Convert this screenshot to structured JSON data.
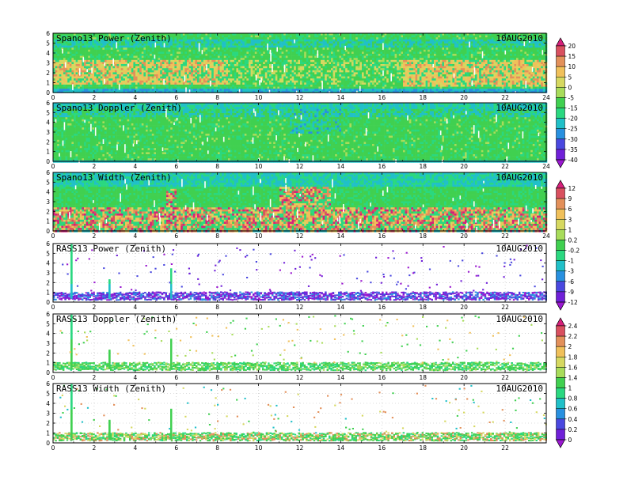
{
  "chart_data": [
    {
      "type": "heatmap",
      "title": "Spano13 Power (Zenith)",
      "date": "10AUG2010",
      "x_ticks": [
        0,
        2,
        4,
        6,
        8,
        10,
        12,
        14,
        16,
        18,
        20,
        22,
        24
      ],
      "y_ticks": [
        0,
        1,
        2,
        3,
        4,
        5,
        6
      ],
      "xlim": [
        0,
        24
      ],
      "ylim": [
        0,
        6
      ],
      "pattern": "power",
      "colorbar": "A"
    },
    {
      "type": "heatmap",
      "title": "Spano13 Doppler (Zenith)",
      "date": "10AUG2010",
      "x_ticks": [
        0,
        2,
        4,
        6,
        8,
        10,
        12,
        14,
        16,
        18,
        20,
        22,
        24
      ],
      "y_ticks": [
        0,
        1,
        2,
        3,
        4,
        5,
        6
      ],
      "xlim": [
        0,
        24
      ],
      "ylim": [
        0,
        6
      ],
      "pattern": "doppler",
      "colorbar": "A"
    },
    {
      "type": "heatmap",
      "title": "Spano13 Width (Zenith)",
      "date": "10AUG2010",
      "x_ticks": [
        0,
        2,
        4,
        6,
        8,
        10,
        12,
        14,
        16,
        18,
        20,
        22,
        24
      ],
      "y_ticks": [
        0,
        1,
        2,
        3,
        4,
        5,
        6
      ],
      "xlim": [
        0,
        24
      ],
      "ylim": [
        0,
        6
      ],
      "pattern": "width",
      "colorbar": "B"
    },
    {
      "type": "scatter",
      "title": "RASS13 Power (Zenith)",
      "date": "10AUG2010",
      "x_ticks": [
        0,
        2,
        4,
        6,
        8,
        10,
        12,
        14,
        16,
        18,
        20,
        22
      ],
      "y_ticks": [
        0,
        1,
        2,
        3,
        4,
        5,
        6
      ],
      "xlim": [
        0,
        24
      ],
      "ylim": [
        0,
        6
      ],
      "pattern": "rass_power",
      "colorbar": "B"
    },
    {
      "type": "scatter",
      "title": "RASS13 Doppler (Zenith)",
      "date": "10AUG2010",
      "x_ticks": [
        0,
        2,
        4,
        6,
        8,
        10,
        12,
        14,
        16,
        18,
        20,
        22
      ],
      "y_ticks": [
        0,
        1,
        2,
        3,
        4,
        5,
        6
      ],
      "xlim": [
        0,
        24
      ],
      "ylim": [
        0,
        6
      ],
      "pattern": "rass_doppler",
      "colorbar": "C"
    },
    {
      "type": "scatter",
      "title": "RASS13 Width (Zenith)",
      "date": "10AUG2010",
      "x_ticks": [
        0,
        2,
        4,
        6,
        8,
        10,
        12,
        14,
        16,
        18,
        20,
        22
      ],
      "y_ticks": [
        0,
        1,
        2,
        3,
        4,
        5,
        6
      ],
      "xlim": [
        0,
        24
      ],
      "ylim": [
        0,
        6
      ],
      "pattern": "rass_width",
      "colorbar": "C"
    }
  ],
  "colorbars": {
    "A": {
      "labels": [
        "20",
        "15",
        "10",
        "5",
        "0",
        "-5",
        "-15",
        "-20",
        "-25",
        "-30",
        "-35",
        "-40"
      ],
      "colors": [
        "#d6207a",
        "#d9505f",
        "#e3905a",
        "#f0c05a",
        "#d6d860",
        "#a8dc5a",
        "#40d050",
        "#2ad880",
        "#20c0c8",
        "#2890e0",
        "#4a48e0",
        "#7020d8",
        "#9a18d0"
      ]
    },
    "B": {
      "labels": [
        "12",
        "9",
        "6",
        "3",
        "1",
        "0.2",
        "-0.2",
        "-1",
        "-3",
        "-6",
        "-9",
        "-12"
      ],
      "colors": [
        "#d6207a",
        "#d9505f",
        "#e3905a",
        "#f0c05a",
        "#d6d860",
        "#a8dc5a",
        "#40d050",
        "#2ad880",
        "#20c0c8",
        "#2890e0",
        "#4a48e0",
        "#7020d8",
        "#9a18d0"
      ]
    },
    "C": {
      "labels": [
        "2.4",
        "2.2",
        "2",
        "1.8",
        "1.6",
        "1.4",
        "1",
        "0.8",
        "0.6",
        "0.4",
        "0.2",
        "0"
      ],
      "colors": [
        "#d6207a",
        "#d9505f",
        "#e3905a",
        "#f0c05a",
        "#d6d860",
        "#a8dc5a",
        "#40d050",
        "#2ad880",
        "#20c0c8",
        "#2890e0",
        "#4a48e0",
        "#7020d8",
        "#9a18d0"
      ]
    }
  }
}
